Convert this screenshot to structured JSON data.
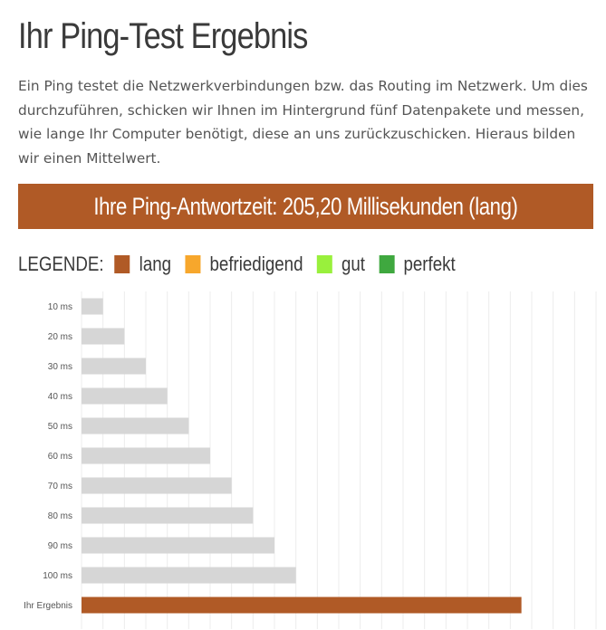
{
  "page": {
    "title": "Ihr Ping-Test Ergebnis",
    "intro": "Ein Ping testet die Netzwerkverbindungen bzw. das Routing im Netzwerk. Um dies durchzuführen, schicken wir Ihnen im Hintergrund fünf Datenpakete und messen, wie lange Ihr Computer benötigt, diese an uns zurückzuschicken. Hieraus bilden wir einen Mittelwert.",
    "result_banner": "Ihre Ping-Antwortzeit: 205,20 Millisekunden (lang)"
  },
  "legend": {
    "title": "LEGENDE:",
    "items": [
      {
        "label": "lang",
        "color": "#b05a26"
      },
      {
        "label": "befriedigend",
        "color": "#f7a72c"
      },
      {
        "label": "gut",
        "color": "#99f03c"
      },
      {
        "label": "perfekt",
        "color": "#3fa83f"
      }
    ]
  },
  "chart_data": {
    "type": "bar",
    "orientation": "horizontal",
    "categories": [
      "10 ms",
      "20 ms",
      "30 ms",
      "40 ms",
      "50 ms",
      "60 ms",
      "70 ms",
      "80 ms",
      "90 ms",
      "100 ms",
      "Ihr Ergebnis"
    ],
    "values": [
      10,
      20,
      30,
      40,
      50,
      60,
      70,
      80,
      90,
      100,
      205.2
    ],
    "bar_colors": [
      "#d6d6d6",
      "#d6d6d6",
      "#d6d6d6",
      "#d6d6d6",
      "#d6d6d6",
      "#d6d6d6",
      "#d6d6d6",
      "#d6d6d6",
      "#d6d6d6",
      "#d6d6d6",
      "#b05a26"
    ],
    "xlim": [
      0,
      240
    ],
    "grid": true,
    "title": "",
    "xlabel": "",
    "ylabel": ""
  }
}
